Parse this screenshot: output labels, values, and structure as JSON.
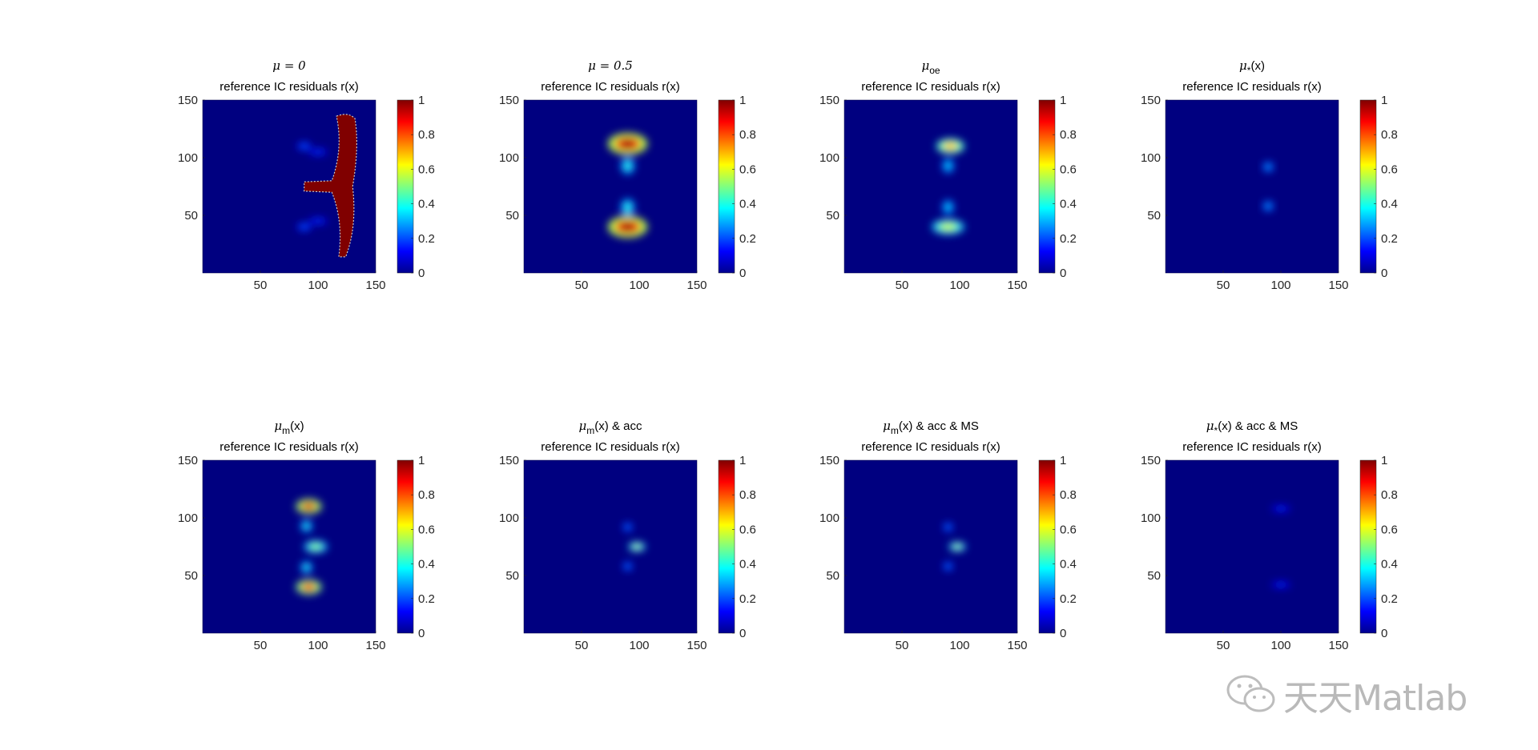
{
  "figure": {
    "watermark_text": "天天Matlab",
    "colors": {
      "background": "#000080",
      "axis_text": "#262626"
    }
  },
  "chart_data": [
    {
      "type": "heatmap",
      "title_line1": "μ = 0",
      "title_line2": "reference IC residuals r(x)",
      "xlim": [
        0,
        150
      ],
      "ylim": [
        0,
        150
      ],
      "xticks": [
        50,
        100,
        150
      ],
      "yticks": [
        50,
        100,
        150
      ],
      "colorbar": {
        "range": [
          0,
          1
        ],
        "ticks": [
          0,
          0.2,
          0.4,
          0.6,
          0.8,
          1
        ],
        "colormap": "jet"
      },
      "blobs": [
        {
          "x": 88,
          "y": 110,
          "rx": 4,
          "ry": 2,
          "v": 0.25
        },
        {
          "x": 88,
          "y": 40,
          "rx": 4,
          "ry": 2,
          "v": 0.25
        },
        {
          "x": 100,
          "y": 105,
          "rx": 6,
          "ry": 1.5,
          "v": 0.2
        },
        {
          "x": 100,
          "y": 45,
          "rx": 6,
          "ry": 1.5,
          "v": 0.2
        }
      ],
      "region": {
        "type": "Y-shaped mask",
        "value": 1.0,
        "color": "#800000"
      }
    },
    {
      "type": "heatmap",
      "title_line1": "μ = 0.5",
      "title_line2": "reference IC residuals r(x)",
      "xlim": [
        0,
        150
      ],
      "ylim": [
        0,
        150
      ],
      "xticks": [
        50,
        100,
        150
      ],
      "yticks": [
        50,
        100,
        150
      ],
      "colorbar": {
        "range": [
          0,
          1
        ],
        "ticks": [
          0,
          0.2,
          0.4,
          0.6,
          0.8,
          1
        ],
        "colormap": "jet"
      },
      "blobs": [
        {
          "x": 90,
          "y": 112,
          "rx": 15,
          "ry": 8,
          "v": 1.0
        },
        {
          "x": 90,
          "y": 40,
          "rx": 15,
          "ry": 8,
          "v": 1.0
        },
        {
          "x": 90,
          "y": 93,
          "rx": 4,
          "ry": 6,
          "v": 0.45
        },
        {
          "x": 90,
          "y": 57,
          "rx": 4,
          "ry": 6,
          "v": 0.45
        }
      ]
    },
    {
      "type": "heatmap",
      "title_line1": "μ",
      "title_line1_sub": "oe",
      "title_line2": "reference IC residuals r(x)",
      "xlim": [
        0,
        150
      ],
      "ylim": [
        0,
        150
      ],
      "xticks": [
        50,
        100,
        150
      ],
      "yticks": [
        50,
        100,
        150
      ],
      "colorbar": {
        "range": [
          0,
          1
        ],
        "ticks": [
          0,
          0.2,
          0.4,
          0.6,
          0.8,
          1
        ],
        "colormap": "jet"
      },
      "blobs": [
        {
          "x": 92,
          "y": 110,
          "rx": 10,
          "ry": 5,
          "v": 0.75
        },
        {
          "x": 90,
          "y": 40,
          "rx": 12,
          "ry": 5,
          "v": 0.6
        },
        {
          "x": 90,
          "y": 93,
          "rx": 3,
          "ry": 5,
          "v": 0.4
        },
        {
          "x": 90,
          "y": 57,
          "rx": 3,
          "ry": 5,
          "v": 0.4
        }
      ]
    },
    {
      "type": "heatmap",
      "title_line1": "μ",
      "title_line1_sub": "*",
      "title_line1_after": "(x)",
      "title_line2": "reference IC residuals r(x)",
      "xlim": [
        0,
        150
      ],
      "ylim": [
        0,
        150
      ],
      "xticks": [
        50,
        100,
        150
      ],
      "yticks": [
        50,
        100,
        150
      ],
      "colorbar": {
        "range": [
          0,
          1
        ],
        "ticks": [
          0,
          0.2,
          0.4,
          0.6,
          0.8,
          1
        ],
        "colormap": "jet"
      },
      "blobs": [
        {
          "x": 89,
          "y": 92,
          "rx": 2.5,
          "ry": 3,
          "v": 0.35
        },
        {
          "x": 89,
          "y": 58,
          "rx": 2.5,
          "ry": 3,
          "v": 0.35
        }
      ]
    },
    {
      "type": "heatmap",
      "title_line1": "μ",
      "title_line1_sub": "m",
      "title_line1_after": "(x)",
      "title_line2": "reference IC residuals r(x)",
      "xlim": [
        0,
        150
      ],
      "ylim": [
        0,
        150
      ],
      "xticks": [
        50,
        100,
        150
      ],
      "yticks": [
        50,
        100,
        150
      ],
      "colorbar": {
        "range": [
          0,
          1
        ],
        "ticks": [
          0,
          0.2,
          0.4,
          0.6,
          0.8,
          1
        ],
        "colormap": "jet"
      },
      "blobs": [
        {
          "x": 92,
          "y": 110,
          "rx": 9,
          "ry": 5,
          "v": 0.95
        },
        {
          "x": 92,
          "y": 40,
          "rx": 9,
          "ry": 5,
          "v": 0.9
        },
        {
          "x": 98,
          "y": 75,
          "rx": 8,
          "ry": 4,
          "v": 0.55
        },
        {
          "x": 90,
          "y": 93,
          "rx": 3,
          "ry": 4,
          "v": 0.45
        },
        {
          "x": 90,
          "y": 57,
          "rx": 3,
          "ry": 4,
          "v": 0.45
        }
      ]
    },
    {
      "type": "heatmap",
      "title_line1": "μ",
      "title_line1_sub": "m",
      "title_line1_after": "(x) & acc",
      "title_line2": "reference IC residuals r(x)",
      "xlim": [
        0,
        150
      ],
      "ylim": [
        0,
        150
      ],
      "xticks": [
        50,
        100,
        150
      ],
      "yticks": [
        50,
        100,
        150
      ],
      "colorbar": {
        "range": [
          0,
          1
        ],
        "ticks": [
          0,
          0.2,
          0.4,
          0.6,
          0.8,
          1
        ],
        "colormap": "jet"
      },
      "blobs": [
        {
          "x": 98,
          "y": 75,
          "rx": 5,
          "ry": 2.5,
          "v": 0.65
        },
        {
          "x": 90,
          "y": 92,
          "rx": 2,
          "ry": 2.5,
          "v": 0.3
        },
        {
          "x": 90,
          "y": 58,
          "rx": 2,
          "ry": 2.5,
          "v": 0.3
        }
      ]
    },
    {
      "type": "heatmap",
      "title_line1": "μ",
      "title_line1_sub": "m",
      "title_line1_after": "(x) & acc & MS",
      "title_line2": "reference IC residuals r(x)",
      "xlim": [
        0,
        150
      ],
      "ylim": [
        0,
        150
      ],
      "xticks": [
        50,
        100,
        150
      ],
      "yticks": [
        50,
        100,
        150
      ],
      "colorbar": {
        "range": [
          0,
          1
        ],
        "ticks": [
          0,
          0.2,
          0.4,
          0.6,
          0.8,
          1
        ],
        "colormap": "jet"
      },
      "blobs": [
        {
          "x": 98,
          "y": 75,
          "rx": 5,
          "ry": 2.5,
          "v": 0.62
        },
        {
          "x": 90,
          "y": 92,
          "rx": 2,
          "ry": 2.5,
          "v": 0.3
        },
        {
          "x": 90,
          "y": 58,
          "rx": 2,
          "ry": 2.5,
          "v": 0.3
        }
      ]
    },
    {
      "type": "heatmap",
      "title_line1": "μ",
      "title_line1_sub": "*",
      "title_line1_after": "(x) & acc & MS",
      "title_line2": "reference IC residuals r(x)",
      "xlim": [
        0,
        150
      ],
      "ylim": [
        0,
        150
      ],
      "xticks": [
        50,
        100,
        150
      ],
      "yticks": [
        50,
        100,
        150
      ],
      "colorbar": {
        "range": [
          0,
          1
        ],
        "ticks": [
          0,
          0.2,
          0.4,
          0.6,
          0.8,
          1
        ],
        "colormap": "jet"
      },
      "blobs": [
        {
          "x": 100,
          "y": 108,
          "rx": 6,
          "ry": 1.5,
          "v": 0.18
        },
        {
          "x": 100,
          "y": 42,
          "rx": 6,
          "ry": 1.5,
          "v": 0.18
        }
      ]
    }
  ]
}
